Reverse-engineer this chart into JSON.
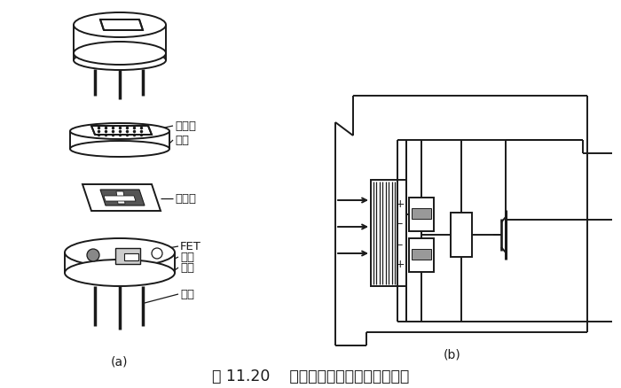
{
  "title": "图 11.20    热释电人体红外传感器的结构",
  "label_a": "(a)",
  "label_b": "(b)",
  "bg_color": "#ffffff",
  "line_color": "#1a1a1a",
  "labels": {
    "filter": "滤光片",
    "cap": "管帽",
    "sensor": "敏感元",
    "fet": "FET",
    "socket": "管座",
    "resistor": "高阻",
    "lead": "引线"
  },
  "font_size_small": 9.5,
  "font_size_label": 10,
  "font_size_title": 12.5
}
